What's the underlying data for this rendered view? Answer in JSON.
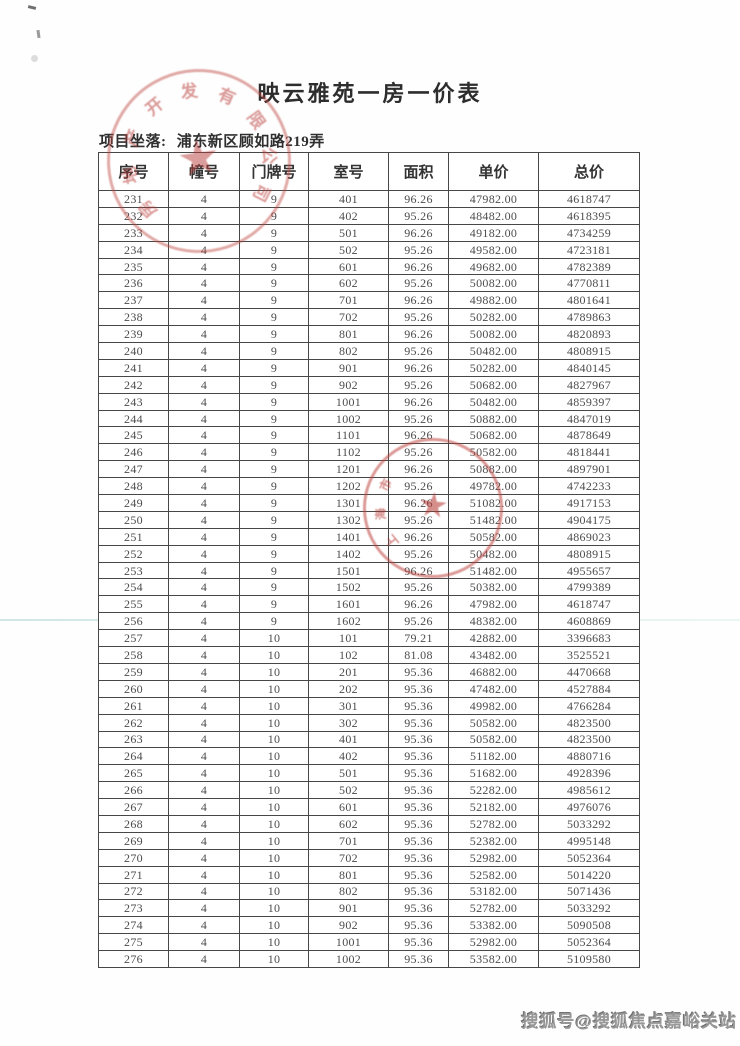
{
  "page": {
    "title": "映云雅苑一房一价表",
    "location_label": "项目坐落:",
    "location_value": "浦东新区顾如路219弄",
    "watermark": "搜狐号@搜狐焦点嘉峪关站"
  },
  "table": {
    "headers": [
      "序号",
      "幢号",
      "门牌号",
      "室号",
      "面积",
      "单价",
      "总价"
    ],
    "rows": [
      [
        "231",
        "4",
        "9",
        "401",
        "96.26",
        "47982.00",
        "4618747"
      ],
      [
        "232",
        "4",
        "9",
        "402",
        "95.26",
        "48482.00",
        "4618395"
      ],
      [
        "233",
        "4",
        "9",
        "501",
        "96.26",
        "49182.00",
        "4734259"
      ],
      [
        "234",
        "4",
        "9",
        "502",
        "95.26",
        "49582.00",
        "4723181"
      ],
      [
        "235",
        "4",
        "9",
        "601",
        "96.26",
        "49682.00",
        "4782389"
      ],
      [
        "236",
        "4",
        "9",
        "602",
        "95.26",
        "50082.00",
        "4770811"
      ],
      [
        "237",
        "4",
        "9",
        "701",
        "96.26",
        "49882.00",
        "4801641"
      ],
      [
        "238",
        "4",
        "9",
        "702",
        "95.26",
        "50282.00",
        "4789863"
      ],
      [
        "239",
        "4",
        "9",
        "801",
        "96.26",
        "50082.00",
        "4820893"
      ],
      [
        "240",
        "4",
        "9",
        "802",
        "95.26",
        "50482.00",
        "4808915"
      ],
      [
        "241",
        "4",
        "9",
        "901",
        "96.26",
        "50282.00",
        "4840145"
      ],
      [
        "242",
        "4",
        "9",
        "902",
        "95.26",
        "50682.00",
        "4827967"
      ],
      [
        "243",
        "4",
        "9",
        "1001",
        "96.26",
        "50482.00",
        "4859397"
      ],
      [
        "244",
        "4",
        "9",
        "1002",
        "95.26",
        "50882.00",
        "4847019"
      ],
      [
        "245",
        "4",
        "9",
        "1101",
        "96.26",
        "50682.00",
        "4878649"
      ],
      [
        "246",
        "4",
        "9",
        "1102",
        "95.26",
        "50582.00",
        "4818441"
      ],
      [
        "247",
        "4",
        "9",
        "1201",
        "96.26",
        "50882.00",
        "4897901"
      ],
      [
        "248",
        "4",
        "9",
        "1202",
        "95.26",
        "49782.00",
        "4742233"
      ],
      [
        "249",
        "4",
        "9",
        "1301",
        "96.26",
        "51082.00",
        "4917153"
      ],
      [
        "250",
        "4",
        "9",
        "1302",
        "95.26",
        "51482.00",
        "4904175"
      ],
      [
        "251",
        "4",
        "9",
        "1401",
        "96.26",
        "50582.00",
        "4869023"
      ],
      [
        "252",
        "4",
        "9",
        "1402",
        "95.26",
        "50482.00",
        "4808915"
      ],
      [
        "253",
        "4",
        "9",
        "1501",
        "96.26",
        "51482.00",
        "4955657"
      ],
      [
        "254",
        "4",
        "9",
        "1502",
        "95.26",
        "50382.00",
        "4799389"
      ],
      [
        "255",
        "4",
        "9",
        "1601",
        "96.26",
        "47982.00",
        "4618747"
      ],
      [
        "256",
        "4",
        "9",
        "1602",
        "95.26",
        "48382.00",
        "4608869"
      ],
      [
        "257",
        "4",
        "10",
        "101",
        "79.21",
        "42882.00",
        "3396683"
      ],
      [
        "258",
        "4",
        "10",
        "102",
        "81.08",
        "43482.00",
        "3525521"
      ],
      [
        "259",
        "4",
        "10",
        "201",
        "95.36",
        "46882.00",
        "4470668"
      ],
      [
        "260",
        "4",
        "10",
        "202",
        "95.36",
        "47482.00",
        "4527884"
      ],
      [
        "261",
        "4",
        "10",
        "301",
        "95.36",
        "49982.00",
        "4766284"
      ],
      [
        "262",
        "4",
        "10",
        "302",
        "95.36",
        "50582.00",
        "4823500"
      ],
      [
        "263",
        "4",
        "10",
        "401",
        "95.36",
        "50582.00",
        "4823500"
      ],
      [
        "264",
        "4",
        "10",
        "402",
        "95.36",
        "51182.00",
        "4880716"
      ],
      [
        "265",
        "4",
        "10",
        "501",
        "95.36",
        "51682.00",
        "4928396"
      ],
      [
        "266",
        "4",
        "10",
        "502",
        "95.36",
        "52282.00",
        "4985612"
      ],
      [
        "267",
        "4",
        "10",
        "601",
        "95.36",
        "52182.00",
        "4976076"
      ],
      [
        "268",
        "4",
        "10",
        "602",
        "95.36",
        "52782.00",
        "5033292"
      ],
      [
        "269",
        "4",
        "10",
        "701",
        "95.36",
        "52382.00",
        "4995148"
      ],
      [
        "270",
        "4",
        "10",
        "702",
        "95.36",
        "52982.00",
        "5052364"
      ],
      [
        "271",
        "4",
        "10",
        "801",
        "95.36",
        "52582.00",
        "5014220"
      ],
      [
        "272",
        "4",
        "10",
        "802",
        "95.36",
        "53182.00",
        "5071436"
      ],
      [
        "273",
        "4",
        "10",
        "901",
        "95.36",
        "52782.00",
        "5033292"
      ],
      [
        "274",
        "4",
        "10",
        "902",
        "95.36",
        "53382.00",
        "5090508"
      ],
      [
        "275",
        "4",
        "10",
        "1001",
        "95.36",
        "52982.00",
        "5052364"
      ],
      [
        "276",
        "4",
        "10",
        "1002",
        "95.36",
        "53582.00",
        "5109580"
      ]
    ]
  },
  "stamps": {
    "developer_seal": {
      "ring_text": "房地产开发有限公司",
      "star": "★"
    },
    "official_seal": {
      "ring_text": "上海市",
      "star": "★"
    }
  },
  "colors": {
    "stamp_red": "#bd4640",
    "ink": "#4c4c4c",
    "scan_line_teal": "#bce4da"
  }
}
